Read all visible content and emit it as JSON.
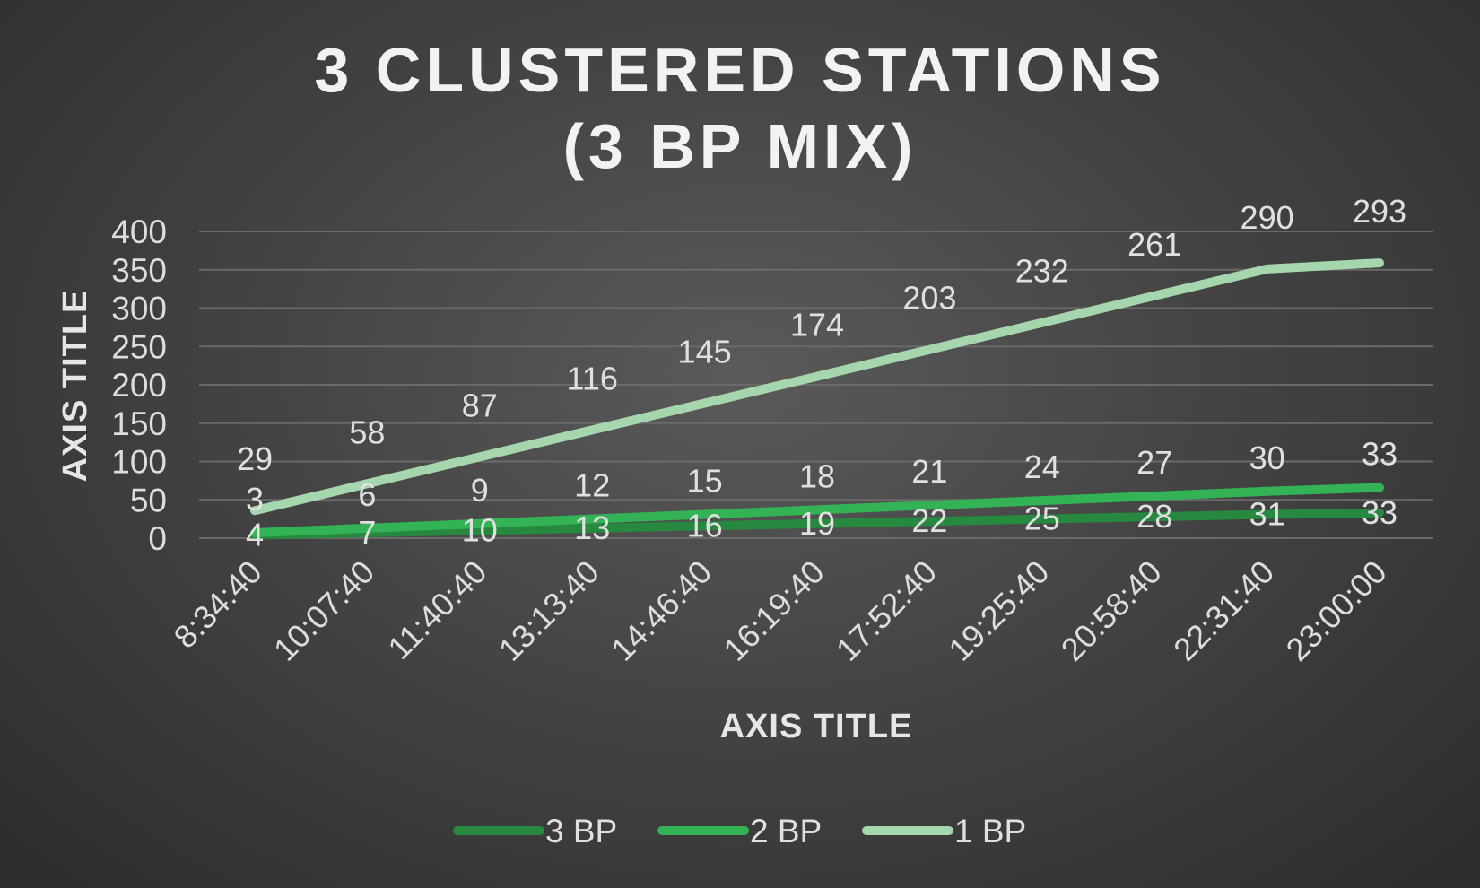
{
  "chart_data": {
    "type": "line",
    "title_lines": [
      "3 CLUSTERED STATIONS",
      "(3 BP MIX)"
    ],
    "xlabel": "AXIS TITLE",
    "ylabel": "AXIS TITLE",
    "ylim": [
      0,
      400
    ],
    "yticks": [
      "0",
      "50",
      "100",
      "150",
      "200",
      "250",
      "300",
      "350",
      "400"
    ],
    "grid": true,
    "legend_position": "bottom",
    "categories": [
      "8:34:40",
      "10:07:40",
      "11:40:40",
      "13:13:40",
      "14:46:40",
      "16:19:40",
      "17:52:40",
      "19:25:40",
      "20:58:40",
      "22:31:40",
      "23:00:00"
    ],
    "series": [
      {
        "name": "3 BP",
        "color": "#27883f",
        "values": [
          4,
          7,
          10,
          13,
          16,
          19,
          22,
          25,
          28,
          31,
          33
        ],
        "labels": [
          "4",
          "7",
          "10",
          "13",
          "16",
          "19",
          "22",
          "25",
          "28",
          "31",
          "33"
        ],
        "cumulative_values": [
          4,
          7,
          10,
          13,
          16,
          19,
          22,
          25,
          28,
          31,
          33
        ]
      },
      {
        "name": "2 BP",
        "color": "#34b356",
        "values": [
          3,
          6,
          9,
          12,
          15,
          18,
          21,
          24,
          27,
          30,
          33
        ],
        "labels": [
          "3",
          "6",
          "9",
          "12",
          "15",
          "18",
          "21",
          "24",
          "27",
          "30",
          "33"
        ],
        "cumulative_values": [
          7,
          13,
          19,
          25,
          31,
          37,
          43,
          49,
          55,
          61,
          66
        ]
      },
      {
        "name": "1 BP",
        "color": "#a5d6ad",
        "values": [
          29,
          58,
          87,
          116,
          145,
          174,
          203,
          232,
          261,
          290,
          293
        ],
        "labels": [
          "29",
          "58",
          "87",
          "116",
          "145",
          "174",
          "203",
          "232",
          "261",
          "290",
          "293"
        ],
        "cumulative_values": [
          36,
          71,
          106,
          141,
          176,
          211,
          246,
          281,
          316,
          351,
          359
        ]
      }
    ]
  }
}
